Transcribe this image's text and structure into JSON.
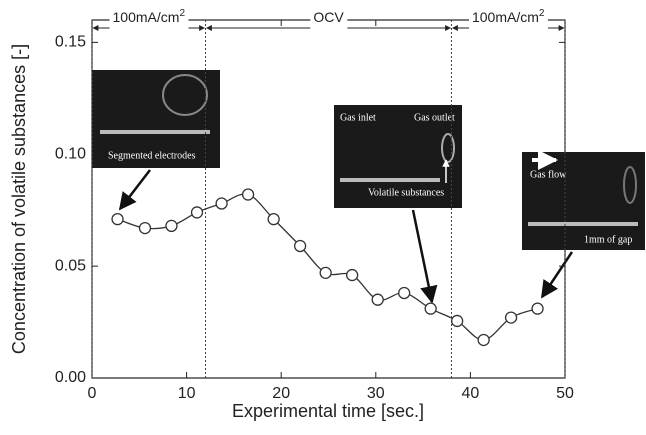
{
  "chart_data": {
    "type": "scatter",
    "x_label": "Experimental time [sec.]",
    "y_label": "Concentration of volatile substances [-]",
    "x": [
      2.7,
      5.6,
      8.4,
      11.1,
      13.7,
      16.5,
      19.2,
      22.0,
      24.7,
      27.5,
      30.2,
      33.0,
      35.8,
      38.6,
      41.4,
      44.3,
      47.1
    ],
    "values": [
      0.071,
      0.067,
      0.068,
      0.074,
      0.078,
      0.082,
      0.071,
      0.059,
      0.047,
      0.046,
      0.035,
      0.038,
      0.031,
      0.0255,
      0.017,
      0.027,
      0.031
    ],
    "color": "#333333",
    "xlim": [
      0,
      50
    ],
    "xticks": [
      0,
      10,
      20,
      30,
      40,
      50
    ],
    "ylim": [
      0,
      0.16
    ],
    "yticks": [
      {
        "value": 0,
        "label": "0.00"
      },
      {
        "value": 0.05,
        "label": "0.05"
      },
      {
        "value": 0.1,
        "label": "0.10"
      },
      {
        "value": 0.15,
        "label": "0.15"
      }
    ],
    "phases": [
      {
        "label": "100mA/cm",
        "superscript": "2",
        "start": 0,
        "end": 12
      },
      {
        "label": "OCV",
        "start": 12,
        "end": 38
      },
      {
        "label": "100mA/cm",
        "superscript": "2",
        "start": 38,
        "end": 50
      }
    ],
    "insets": [
      {
        "labels": [
          "Segmented electrodes"
        ]
      },
      {
        "labels": [
          "Gas inlet",
          "Gas outlet",
          "Volatile substances"
        ]
      },
      {
        "labels": [
          "Gas flow",
          "1mm of gap"
        ]
      }
    ]
  }
}
